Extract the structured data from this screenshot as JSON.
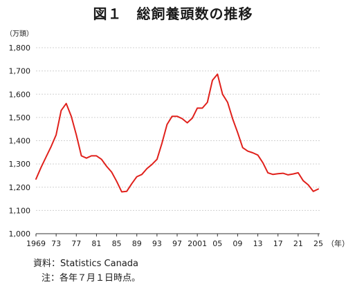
{
  "chart_data": {
    "type": "line",
    "title": "図１　総飼養頭数の推移",
    "y_unit_label": "（万頭）",
    "x_unit_label": "（年）",
    "ylim": [
      1000,
      1800
    ],
    "yticks": [
      1000,
      1100,
      1200,
      1300,
      1400,
      1500,
      1600,
      1700,
      1800
    ],
    "ytick_labels": [
      "1,000",
      "1,100",
      "1,200",
      "1,300",
      "1,400",
      "1,500",
      "1,600",
      "1,700",
      "1,800"
    ],
    "xlim": [
      1969,
      2025
    ],
    "xticks": [
      1969,
      1973,
      1977,
      1981,
      1985,
      1989,
      1993,
      1997,
      2001,
      2005,
      2009,
      2013,
      2017,
      2021,
      2025
    ],
    "xtick_labels": [
      "1969",
      "73",
      "77",
      "81",
      "85",
      "89",
      "93",
      "97",
      "2001",
      "05",
      "09",
      "13",
      "17",
      "21",
      "25"
    ],
    "grid": true,
    "series": [
      {
        "color": "#e0201b",
        "x": [
          1969,
          1970,
          1971,
          1972,
          1973,
          1974,
          1975,
          1976,
          1977,
          1978,
          1979,
          1980,
          1981,
          1982,
          1983,
          1984,
          1985,
          1986,
          1987,
          1988,
          1989,
          1990,
          1991,
          1992,
          1993,
          1994,
          1995,
          1996,
          1997,
          1998,
          1999,
          2000,
          2001,
          2002,
          2003,
          2004,
          2005,
          2006,
          2007,
          2008,
          2009,
          2010,
          2011,
          2012,
          2013,
          2014,
          2015,
          2016,
          2017,
          2018,
          2019,
          2020,
          2021,
          2022,
          2023,
          2024,
          2025
        ],
        "values": [
          1235,
          1285,
          1330,
          1375,
          1425,
          1530,
          1560,
          1505,
          1425,
          1335,
          1325,
          1335,
          1335,
          1320,
          1290,
          1265,
          1225,
          1180,
          1182,
          1215,
          1245,
          1255,
          1280,
          1298,
          1320,
          1390,
          1470,
          1505,
          1505,
          1495,
          1477,
          1497,
          1540,
          1540,
          1565,
          1660,
          1686,
          1600,
          1565,
          1495,
          1435,
          1370,
          1355,
          1348,
          1338,
          1305,
          1262,
          1255,
          1258,
          1260,
          1253,
          1257,
          1262,
          1228,
          1210,
          1182,
          1192
        ]
      }
    ]
  },
  "source": "資料：Statistics Canada",
  "footnote": "注：各年７月１日時点。"
}
